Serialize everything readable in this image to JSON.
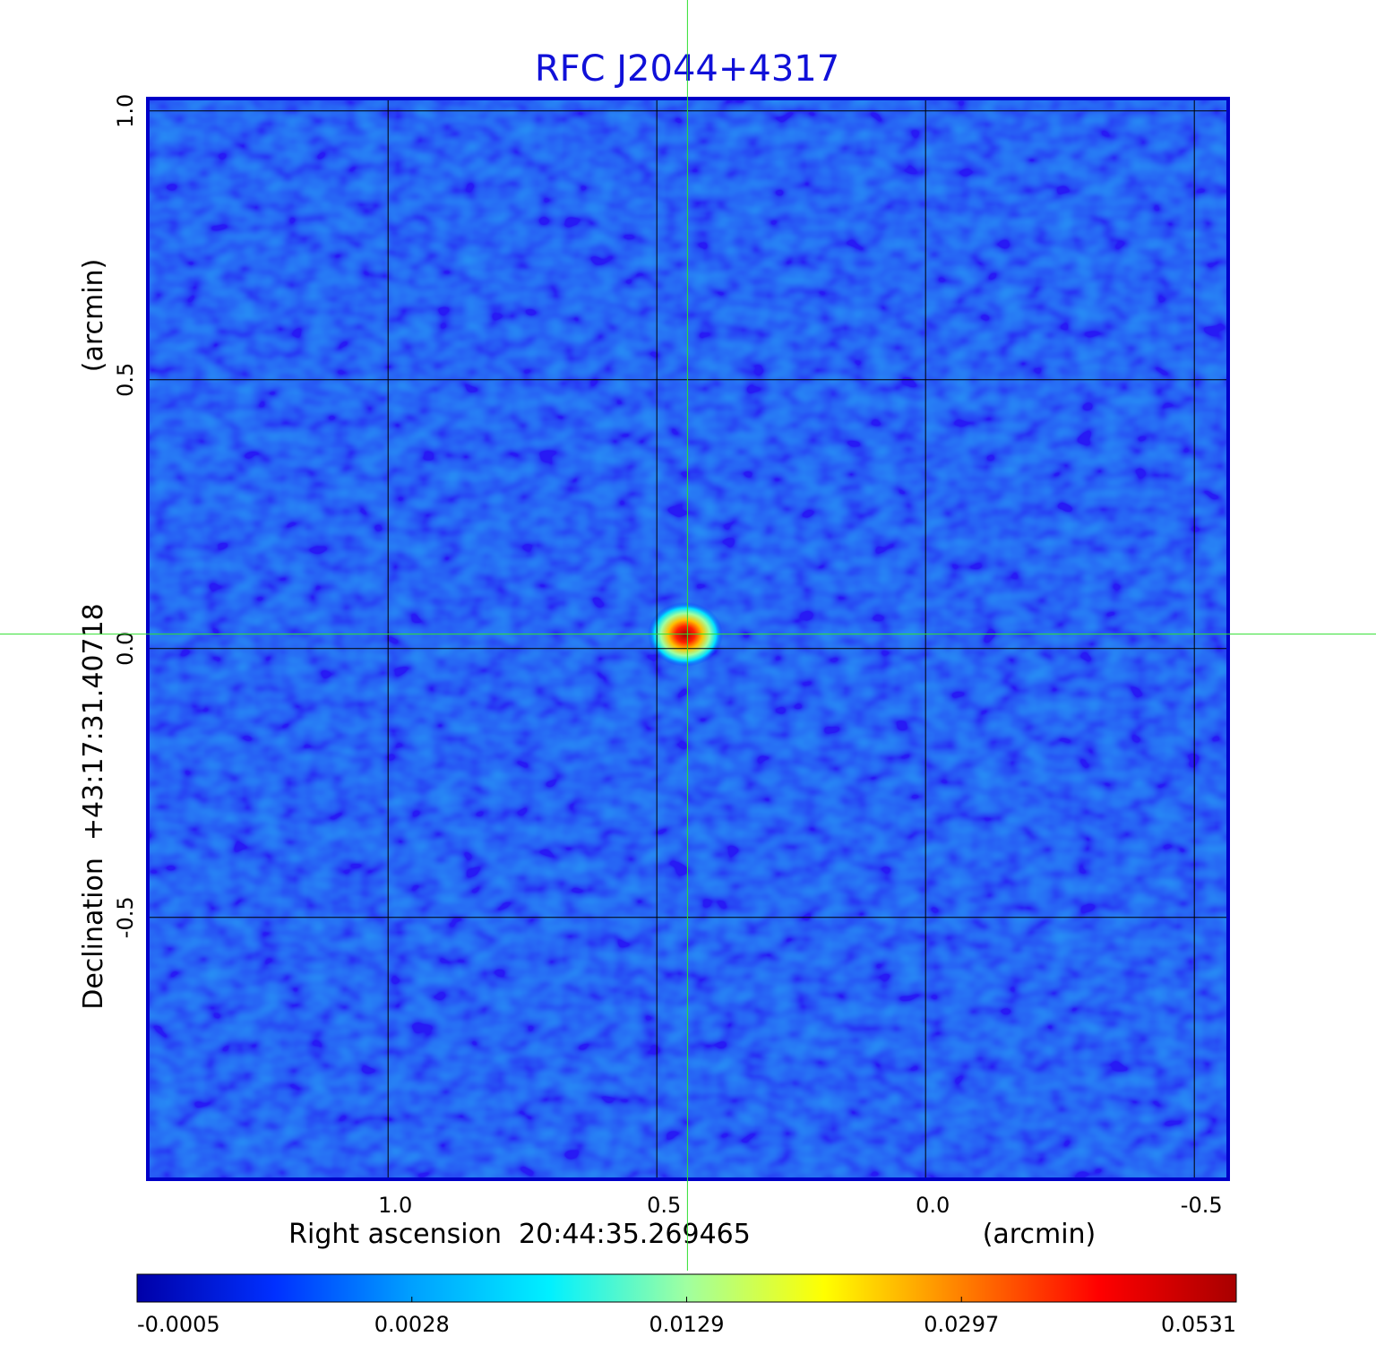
{
  "chart_data": {
    "type": "image",
    "title": "RFC J2044+4317",
    "xlabel": "Right ascension  20:44:35.269465",
    "xunit": "(arcmin)",
    "ylabel": "Declination  +43:17:31.40718",
    "yunit": "(arcmin)",
    "xlim": [
      1.447,
      -0.563
    ],
    "ylim": [
      -0.987,
      1.023
    ],
    "xticks": [
      {
        "value": 1,
        "label": "1.0"
      },
      0.5,
      {
        "value": 0,
        "label": "0.0"
      },
      -0.5
    ],
    "yticks": [
      {
        "value": 1,
        "label": "1.0"
      },
      0.5,
      {
        "value": 0,
        "label": "0.0"
      },
      -0.5
    ],
    "grid": true,
    "crosshair": [
      0.443,
      0.027
    ],
    "colorbar_ticks": [
      -0.0005,
      0.0028,
      0.0129,
      0.0297,
      0.0531
    ],
    "colormap": [
      "#0000a8",
      "#0030ff",
      "#00a0ff",
      "#00f0ff",
      "#a0ffa0",
      "#ffff00",
      "#ff8000",
      "#ff0000",
      "#a80000"
    ]
  }
}
